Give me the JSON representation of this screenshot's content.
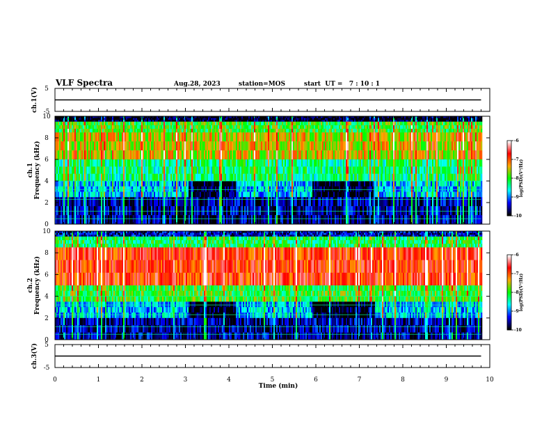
{
  "header": {
    "title": "VLF Spectra",
    "date": "Aug.28, 2023",
    "station": "station=MOS",
    "start": "start  UT =   7 : 10 : 1"
  },
  "colorbar": {
    "label": "log(PSD)(V²/Hz)",
    "ticks": [
      "-6",
      "-7",
      "-8",
      "-9",
      "-10"
    ],
    "colors": [
      "#ffffff",
      "#ff0000",
      "#ffa500",
      "#00ff00",
      "#00ffff",
      "#0000ff",
      "#000000"
    ]
  },
  "chart_data": [
    {
      "type": "line",
      "panel": "ch1-voltage",
      "ylabel": "ch.1(V)",
      "ylim": [
        -5,
        5
      ],
      "yticks": [
        "5",
        "-5"
      ],
      "xlim": [
        0,
        10
      ],
      "series": [
        {
          "x": [
            0,
            9.8
          ],
          "y": [
            0,
            0
          ]
        }
      ]
    },
    {
      "type": "heatmap",
      "panel": "ch1-spectrogram",
      "ylabel_top": "ch.1",
      "ylabel": "Frequency (kHz)",
      "ylim": [
        0,
        10
      ],
      "yticks": [
        "10",
        "8",
        "6",
        "4",
        "2",
        "0"
      ],
      "xlim": [
        0,
        10
      ],
      "data_end_min": 9.8,
      "bands": [
        {
          "f_low": 9.5,
          "f_high": 10,
          "level": -10
        },
        {
          "f_low": 8.5,
          "f_high": 9.5,
          "level": -8
        },
        {
          "f_low": 6.0,
          "f_high": 8.5,
          "level": -7.5
        },
        {
          "f_low": 4.0,
          "f_high": 6.0,
          "level": -8.3
        },
        {
          "f_low": 2.5,
          "f_high": 4.0,
          "level": -8.8
        },
        {
          "f_low": 0,
          "f_high": 2.5,
          "level": -9.6
        }
      ],
      "dark_intervals_min": [
        [
          3.05,
          4.15
        ],
        [
          5.9,
          7.35
        ]
      ]
    },
    {
      "type": "heatmap",
      "panel": "ch2-spectrogram",
      "ylabel_top": "ch.2",
      "ylabel": "Frequency (kHz)",
      "ylim": [
        0,
        10
      ],
      "yticks": [
        "10",
        "8",
        "6",
        "4",
        "2",
        "0"
      ],
      "xlim": [
        0,
        10
      ],
      "data_end_min": 9.8,
      "bands": [
        {
          "f_low": 9.5,
          "f_high": 10,
          "level": -9.5
        },
        {
          "f_low": 8.5,
          "f_high": 9.5,
          "level": -8.2
        },
        {
          "f_low": 5.0,
          "f_high": 8.5,
          "level": -6.8
        },
        {
          "f_low": 3.5,
          "f_high": 5.0,
          "level": -8.0
        },
        {
          "f_low": 2.0,
          "f_high": 3.5,
          "level": -8.8
        },
        {
          "f_low": 0,
          "f_high": 2.0,
          "level": -9.6
        }
      ],
      "dark_intervals_min": [
        [
          3.05,
          4.15
        ],
        [
          5.9,
          7.35
        ]
      ]
    },
    {
      "type": "line",
      "panel": "ch3-voltage",
      "ylabel": "ch.3(V)",
      "ylim": [
        -5,
        5
      ],
      "yticks": [
        "5",
        "-5"
      ],
      "xlim": [
        0,
        10
      ],
      "series": [
        {
          "x": [
            0,
            9.8
          ],
          "y": [
            0,
            0
          ]
        }
      ]
    }
  ],
  "xaxis": {
    "label": "Time (min)",
    "ticks": [
      "0",
      "1",
      "2",
      "3",
      "4",
      "5",
      "6",
      "7",
      "8",
      "9",
      "10"
    ]
  }
}
